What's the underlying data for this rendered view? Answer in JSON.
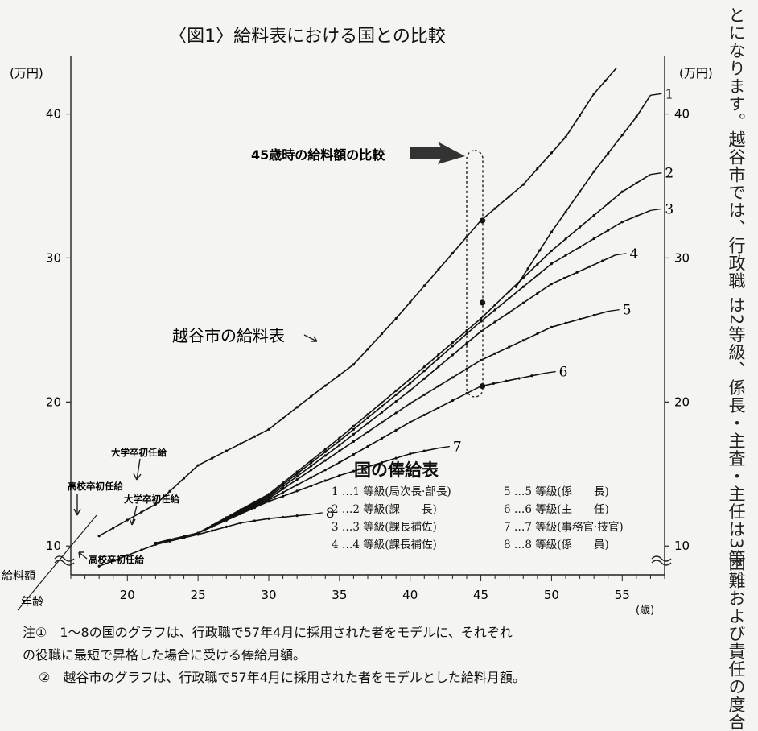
{
  "side_text": [
    "とになります。越谷市では、行政職",
    "は2等級、係長・主査・主任は3等",
    "困難および責任の度合"
  ],
  "legend_title": "国の俸給表",
  "legend_items": [
    "1 …1 等級(局次長·部長)",
    "2 …2 等級(課　　長)",
    "3 …3 等級(課長補佐)",
    "4 …4 等級(課長補佐)",
    "5 …5 等級(係　　長)",
    "6 …6 等級(主　　任)",
    "7 …7 等級(事務官·技官)",
    "8 …8 等級(係　　員)"
  ],
  "notes": [
    "注①　1～8の国のグラフは、行政職で57年4月に採用された者をモデルに、それぞれ",
    "の役職に最短で昇格した場合に受ける俸給月額。",
    "②　越谷市のグラフは、行政職で57年4月に採用された者をモデルとした給料月額。"
  ],
  "chart_data": {
    "type": "line",
    "title": "〈図1〉給料表における国との比較",
    "ylabel_left": "(万円)",
    "ylabel_right": "(万円)",
    "xlabel": "(歳)",
    "corner_labels": {
      "top": "給料額",
      "bottom": "年齢"
    },
    "xlim": [
      16,
      58
    ],
    "ylim": [
      8,
      44
    ],
    "xticks": [
      20,
      25,
      30,
      35,
      40,
      45,
      50,
      55
    ],
    "yticks": [
      10,
      20,
      30,
      40
    ],
    "annotations": {
      "comparison": "45歳時の給料額の比較",
      "city_label": "越谷市の給料表",
      "univ_city": "大学卒初任給",
      "high_city": "高校卒初任給",
      "univ_national": "大学卒初任給",
      "high_national": "高校卒初任給"
    },
    "highlight_age": 45,
    "highlight_values": [
      32.6,
      26.9,
      21.1
    ],
    "series": [
      {
        "name": "越谷市の給料表",
        "x": [
          18,
          22,
          25,
          28,
          30,
          33,
          36,
          39,
          42,
          45,
          48,
          51,
          53,
          54.6
        ],
        "y": [
          10.7,
          12.9,
          15.6,
          17.1,
          18.1,
          20.4,
          22.6,
          25.8,
          29.2,
          32.6,
          35.1,
          38.4,
          41.4,
          43.2
        ]
      },
      {
        "name": "1",
        "x": [
          47.5,
          50,
          53,
          56,
          57
        ],
        "y": [
          28.0,
          31.8,
          36.0,
          39.8,
          41.3
        ]
      },
      {
        "name": "2",
        "x": [
          22,
          25,
          30,
          35,
          40,
          45,
          50,
          55,
          57
        ],
        "y": [
          10.2,
          10.9,
          13.6,
          17.5,
          21.6,
          25.8,
          30.5,
          34.6,
          35.8
        ]
      },
      {
        "name": "3",
        "x": [
          22,
          25,
          30,
          35,
          40,
          45,
          50,
          55,
          57
        ],
        "y": [
          10.2,
          10.9,
          13.5,
          17.3,
          21.3,
          25.6,
          29.6,
          32.5,
          33.3
        ]
      },
      {
        "name": "4",
        "x": [
          22,
          25,
          30,
          35,
          40,
          45,
          50,
          54.5
        ],
        "y": [
          10.2,
          10.9,
          13.4,
          17.0,
          20.8,
          24.9,
          28.2,
          30.2
        ]
      },
      {
        "name": "5",
        "x": [
          22,
          25,
          30,
          35,
          40,
          45,
          50,
          54
        ],
        "y": [
          10.2,
          10.9,
          13.3,
          16.6,
          19.9,
          22.9,
          25.2,
          26.3
        ]
      },
      {
        "name": "6",
        "x": [
          22,
          25,
          30,
          35,
          40,
          45,
          49.5
        ],
        "y": [
          10.2,
          10.9,
          13.2,
          15.8,
          18.6,
          21.1,
          22.0
        ]
      },
      {
        "name": "7",
        "x": [
          22,
          25,
          30,
          35,
          40,
          42
        ],
        "y": [
          10.2,
          10.9,
          13.1,
          14.9,
          16.4,
          16.8
        ]
      },
      {
        "name": "8",
        "x": [
          18,
          22,
          25,
          28,
          30,
          33
        ],
        "y": [
          8.6,
          10.1,
          10.8,
          11.6,
          11.9,
          12.2
        ]
      }
    ]
  }
}
